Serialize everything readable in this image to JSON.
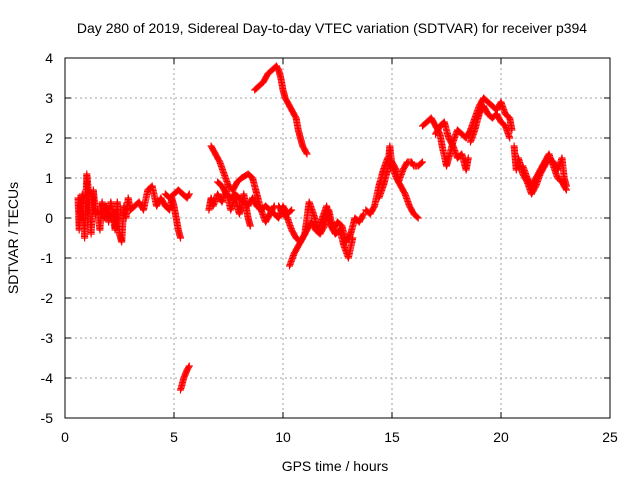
{
  "chart_data": {
    "type": "scatter",
    "title": "Day 280 of 2019, Sidereal Day-to-day VTEC variation (SDTVAR) for receiver p394",
    "xlabel": "GPS time / hours",
    "ylabel": "SDTVAR / TECUs",
    "xlim": [
      0,
      25
    ],
    "ylim": [
      -5,
      4
    ],
    "xticks": [
      "0",
      "5",
      "10",
      "15",
      "20",
      "25"
    ],
    "yticks": [
      "4",
      "3",
      "2",
      "1",
      "0",
      "-1",
      "-2",
      "-3",
      "-4",
      "-5"
    ],
    "grid": true,
    "marker": "+",
    "color": "#ff0000",
    "series": [
      {
        "name": "p394",
        "segments": [
          [
            [
              0.6,
              0.5
            ],
            [
              0.65,
              -0.3
            ],
            [
              0.7,
              0.3
            ],
            [
              0.8,
              0.6
            ],
            [
              0.9,
              -0.5
            ],
            [
              1.0,
              1.1
            ],
            [
              1.1,
              0.5
            ],
            [
              1.2,
              -0.4
            ],
            [
              1.3,
              0.7
            ],
            [
              1.4,
              0.1
            ],
            [
              1.5,
              0.2
            ],
            [
              1.6,
              -0.3
            ],
            [
              1.7,
              0.4
            ],
            [
              1.8,
              0.0
            ],
            [
              1.9,
              0.3
            ],
            [
              2.0,
              -0.1
            ],
            [
              2.1,
              0.4
            ],
            [
              2.2,
              0.1
            ],
            [
              2.3,
              -0.3
            ],
            [
              2.4,
              0.4
            ],
            [
              2.5,
              -0.4
            ],
            [
              2.6,
              -0.6
            ],
            [
              2.7,
              0.3
            ],
            [
              2.8,
              0.0
            ],
            [
              2.9,
              0.5
            ],
            [
              3.0,
              0.2
            ],
            [
              3.2,
              0.3
            ],
            [
              3.4,
              0.4
            ],
            [
              3.6,
              0.2
            ],
            [
              3.8,
              0.7
            ],
            [
              4.0,
              0.8
            ],
            [
              4.2,
              0.3
            ],
            [
              4.4,
              0.5
            ],
            [
              4.6,
              0.3
            ],
            [
              4.8,
              0.2
            ],
            [
              4.9,
              0.5
            ],
            [
              5.0,
              0.3
            ],
            [
              5.1,
              0.0
            ],
            [
              5.2,
              -0.3
            ],
            [
              5.3,
              -0.5
            ]
          ],
          [
            [
              4.6,
              0.6
            ],
            [
              4.8,
              0.5
            ],
            [
              5.0,
              0.6
            ],
            [
              5.2,
              0.7
            ],
            [
              5.4,
              0.6
            ],
            [
              5.6,
              0.5
            ],
            [
              5.7,
              0.6
            ]
          ],
          [
            [
              5.3,
              -4.3
            ],
            [
              5.45,
              -4.0
            ],
            [
              5.6,
              -3.8
            ],
            [
              5.7,
              -3.7
            ]
          ],
          [
            [
              6.6,
              0.2
            ],
            [
              6.7,
              0.5
            ],
            [
              6.8,
              0.3
            ],
            [
              7.0,
              0.6
            ],
            [
              7.2,
              0.4
            ],
            [
              7.4,
              0.7
            ],
            [
              7.6,
              0.2
            ],
            [
              7.8,
              0.5
            ],
            [
              8.0,
              0.1
            ],
            [
              8.1,
              0.3
            ],
            [
              8.2,
              0.6
            ],
            [
              8.3,
              0.3
            ],
            [
              8.4,
              0.0
            ],
            [
              8.5,
              -0.2
            ]
          ],
          [
            [
              6.7,
              1.8
            ],
            [
              6.9,
              1.6
            ],
            [
              7.1,
              1.4
            ],
            [
              7.3,
              1.1
            ],
            [
              7.5,
              0.8
            ],
            [
              7.7,
              0.7
            ],
            [
              7.9,
              0.9
            ],
            [
              8.1,
              1.0
            ],
            [
              8.4,
              1.1
            ],
            [
              8.6,
              1.0
            ],
            [
              8.8,
              0.6
            ],
            [
              9.0,
              0.2
            ],
            [
              9.2,
              -0.1
            ],
            [
              9.4,
              0.1
            ],
            [
              9.6,
              0.3
            ]
          ],
          [
            [
              7.0,
              0.9
            ],
            [
              7.2,
              0.8
            ],
            [
              7.4,
              0.6
            ],
            [
              7.6,
              0.5
            ],
            [
              7.8,
              0.6
            ],
            [
              8.0,
              0.5
            ],
            [
              8.2,
              0.4
            ],
            [
              8.4,
              0.3
            ],
            [
              8.6,
              0.5
            ],
            [
              8.8,
              0.3
            ],
            [
              9.0,
              0.2
            ],
            [
              9.2,
              0.3
            ],
            [
              9.4,
              0.2
            ],
            [
              9.6,
              0.1
            ],
            [
              9.8,
              0.0
            ],
            [
              10.0,
              0.3
            ],
            [
              10.2,
              0.1
            ],
            [
              10.4,
              0.2
            ]
          ],
          [
            [
              8.7,
              3.2
            ],
            [
              8.9,
              3.3
            ],
            [
              9.1,
              3.4
            ],
            [
              9.3,
              3.6
            ],
            [
              9.5,
              3.7
            ],
            [
              9.7,
              3.8
            ],
            [
              9.8,
              3.7
            ],
            [
              9.9,
              3.5
            ],
            [
              10.0,
              3.2
            ],
            [
              10.1,
              3.0
            ],
            [
              10.2,
              2.9
            ],
            [
              10.4,
              2.7
            ],
            [
              10.5,
              2.6
            ],
            [
              10.6,
              2.5
            ],
            [
              10.7,
              2.2
            ],
            [
              10.8,
              2.0
            ],
            [
              10.9,
              1.8
            ],
            [
              11.0,
              1.7
            ],
            [
              11.1,
              1.6
            ]
          ],
          [
            [
              10.3,
              -1.2
            ],
            [
              10.5,
              -0.9
            ],
            [
              10.7,
              -0.7
            ],
            [
              10.9,
              -0.5
            ],
            [
              11.1,
              -0.3
            ],
            [
              11.3,
              -0.1
            ],
            [
              11.5,
              -0.3
            ],
            [
              11.7,
              -0.4
            ],
            [
              11.9,
              -0.2
            ],
            [
              12.1,
              0.2
            ],
            [
              12.3,
              -0.3
            ],
            [
              12.5,
              -0.1
            ],
            [
              12.7,
              -0.2
            ],
            [
              12.9,
              -0.6
            ],
            [
              13.1,
              -0.4
            ],
            [
              13.3,
              0.0
            ],
            [
              13.5,
              -0.1
            ],
            [
              13.7,
              0.1
            ]
          ],
          [
            [
              9.8,
              0.3
            ],
            [
              10.0,
              0.1
            ],
            [
              10.2,
              0.0
            ],
            [
              10.4,
              -0.3
            ],
            [
              10.6,
              -0.5
            ],
            [
              10.8,
              -0.6
            ],
            [
              11.0,
              -0.4
            ],
            [
              11.2,
              0.4
            ],
            [
              11.4,
              0.1
            ],
            [
              11.6,
              -0.3
            ],
            [
              11.8,
              0.0
            ],
            [
              12.0,
              0.3
            ],
            [
              12.2,
              -0.2
            ],
            [
              12.4,
              -0.4
            ],
            [
              12.6,
              -0.3
            ],
            [
              12.8,
              -0.7
            ],
            [
              13.0,
              -1.0
            ],
            [
              13.2,
              -0.5
            ]
          ],
          [
            [
              13.8,
              0.2
            ],
            [
              14.0,
              0.1
            ],
            [
              14.2,
              0.3
            ],
            [
              14.4,
              0.8
            ],
            [
              14.6,
              1.2
            ],
            [
              14.8,
              1.5
            ],
            [
              15.0,
              1.4
            ],
            [
              15.2,
              1.2
            ],
            [
              15.3,
              0.9
            ],
            [
              15.5,
              1.2
            ],
            [
              15.7,
              1.4
            ],
            [
              15.9,
              1.4
            ],
            [
              16.0,
              1.3
            ],
            [
              16.2,
              1.3
            ],
            [
              16.4,
              1.4
            ]
          ],
          [
            [
              14.4,
              0.5
            ],
            [
              14.6,
              0.8
            ],
            [
              14.8,
              1.2
            ],
            [
              14.9,
              1.8
            ],
            [
              15.0,
              1.3
            ],
            [
              15.2,
              1.0
            ],
            [
              15.4,
              0.8
            ],
            [
              15.6,
              0.6
            ],
            [
              15.8,
              0.3
            ],
            [
              16.0,
              0.1
            ],
            [
              16.2,
              0.0
            ]
          ],
          [
            [
              16.4,
              2.3
            ],
            [
              16.6,
              2.4
            ],
            [
              16.8,
              2.5
            ],
            [
              17.0,
              2.3
            ],
            [
              17.2,
              2.1
            ],
            [
              17.3,
              1.8
            ],
            [
              17.5,
              1.3
            ],
            [
              17.6,
              1.5
            ],
            [
              17.8,
              1.9
            ],
            [
              18.0,
              2.2
            ],
            [
              18.2,
              2.1
            ],
            [
              18.4,
              2.0
            ],
            [
              18.6,
              2.2
            ],
            [
              18.8,
              2.5
            ],
            [
              19.0,
              2.8
            ],
            [
              19.2,
              3.0
            ],
            [
              19.4,
              2.9
            ],
            [
              19.6,
              2.8
            ],
            [
              19.8,
              2.7
            ],
            [
              20.0,
              2.9
            ],
            [
              20.2,
              2.6
            ],
            [
              20.4,
              2.5
            ],
            [
              20.5,
              2.2
            ]
          ],
          [
            [
              17.0,
              2.1
            ],
            [
              17.2,
              2.3
            ],
            [
              17.4,
              2.4
            ],
            [
              17.6,
              2.0
            ],
            [
              17.8,
              1.8
            ],
            [
              18.0,
              1.5
            ],
            [
              18.2,
              1.6
            ],
            [
              18.4,
              1.2
            ],
            [
              18.5,
              1.5
            ]
          ],
          [
            [
              18.6,
              1.9
            ],
            [
              18.8,
              2.2
            ],
            [
              19.0,
              2.6
            ],
            [
              19.2,
              2.8
            ],
            [
              19.4,
              2.6
            ],
            [
              19.6,
              2.5
            ],
            [
              19.8,
              2.6
            ],
            [
              20.0,
              2.4
            ],
            [
              20.2,
              2.3
            ],
            [
              20.4,
              2.0
            ]
          ],
          [
            [
              20.6,
              1.8
            ],
            [
              20.7,
              1.2
            ],
            [
              20.8,
              1.5
            ],
            [
              21.0,
              1.1
            ],
            [
              21.2,
              0.9
            ],
            [
              21.4,
              0.6
            ],
            [
              21.6,
              0.8
            ],
            [
              21.8,
              1.1
            ],
            [
              22.0,
              1.3
            ],
            [
              22.2,
              1.5
            ],
            [
              22.4,
              1.4
            ],
            [
              22.6,
              1.2
            ],
            [
              22.8,
              1.5
            ],
            [
              22.9,
              1.0
            ],
            [
              23.0,
              0.8
            ]
          ],
          [
            [
              21.0,
              1.3
            ],
            [
              21.2,
              1.0
            ],
            [
              21.4,
              0.8
            ],
            [
              21.6,
              1.0
            ],
            [
              21.8,
              1.2
            ],
            [
              22.0,
              1.4
            ],
            [
              22.2,
              1.6
            ],
            [
              22.4,
              1.3
            ],
            [
              22.6,
              1.0
            ],
            [
              22.8,
              0.9
            ],
            [
              23.0,
              0.7
            ]
          ]
        ]
      }
    ]
  }
}
